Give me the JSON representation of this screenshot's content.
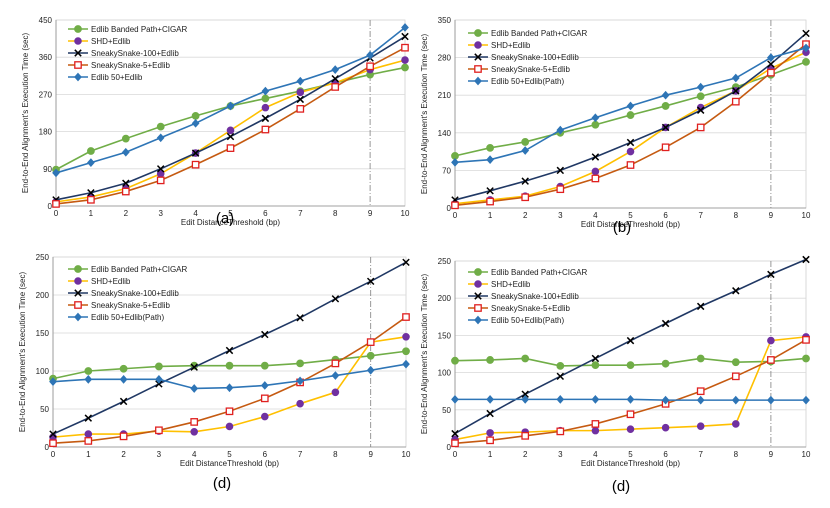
{
  "chart_data": [
    {
      "type": "line",
      "caption": "(a)",
      "xlabel": "Edit DistanceThreshold (bp)",
      "ylabel": "End-to-End Alignment's Execution Time (sec)",
      "x": [
        0,
        1,
        2,
        3,
        4,
        5,
        6,
        7,
        8,
        9,
        10
      ],
      "xlim": [
        0,
        10
      ],
      "ylim": [
        0,
        450
      ],
      "yticks": [
        0,
        90,
        180,
        270,
        360,
        450
      ],
      "grid": true,
      "legend": "top-left",
      "vline": 9,
      "series": [
        {
          "name": "Edlib Banded Path+CIGAR",
          "color": "#70ad47",
          "marker": "circle",
          "values": [
            88,
            133,
            163,
            192,
            218,
            242,
            260,
            278,
            298,
            318,
            335
          ]
        },
        {
          "name": "SHD+Edlib",
          "color": "#ffc000",
          "marker": "purple-circle",
          "values": [
            10,
            22,
            42,
            78,
            128,
            183,
            238,
            275,
            298,
            330,
            353
          ]
        },
        {
          "name": "SneakySnake-100+Edlib",
          "color": "#203864",
          "marker": "x",
          "values": [
            15,
            32,
            55,
            90,
            128,
            168,
            212,
            258,
            308,
            358,
            410
          ]
        },
        {
          "name": "SneakySnake-5+Edlib",
          "color": "#c55a11",
          "marker": "square",
          "values": [
            5,
            15,
            35,
            62,
            100,
            140,
            185,
            235,
            288,
            338,
            383
          ]
        },
        {
          "name": "Edlib 50+Edlib",
          "color": "#2e75b6",
          "marker": "diamond",
          "values": [
            80,
            105,
            130,
            165,
            200,
            242,
            278,
            302,
            330,
            365,
            432
          ]
        }
      ]
    },
    {
      "type": "line",
      "caption": "(b)",
      "xlabel": "Edit DistanceThreshold (bp)",
      "ylabel": "End-to-End Alignment's Execution Time (sec)",
      "x": [
        0,
        1,
        2,
        3,
        4,
        5,
        6,
        7,
        8,
        9,
        10
      ],
      "xlim": [
        0,
        10
      ],
      "ylim": [
        0,
        350
      ],
      "yticks": [
        0,
        70,
        140,
        210,
        280,
        350
      ],
      "grid": true,
      "legend": "top-left",
      "vline": 9,
      "series": [
        {
          "name": "Edlib Banded Path+CIGAR",
          "color": "#70ad47",
          "marker": "circle",
          "values": [
            97,
            112,
            123,
            140,
            155,
            173,
            190,
            208,
            225,
            248,
            272
          ]
        },
        {
          "name": "SHD+Edlib",
          "color": "#ffc000",
          "marker": "purple-circle",
          "values": [
            8,
            15,
            22,
            40,
            68,
            105,
            150,
            187,
            218,
            260,
            290
          ]
        },
        {
          "name": "SneakySnake-100+Edlib",
          "color": "#203864",
          "marker": "x",
          "values": [
            15,
            32,
            50,
            70,
            95,
            122,
            150,
            182,
            218,
            268,
            325
          ]
        },
        {
          "name": "SneakySnake-5+Edlib",
          "color": "#c55a11",
          "marker": "square",
          "values": [
            5,
            12,
            20,
            35,
            55,
            80,
            113,
            150,
            198,
            252,
            305
          ]
        },
        {
          "name": "Edlib 50+Edlib(Path)",
          "color": "#2e75b6",
          "marker": "diamond",
          "values": [
            85,
            90,
            107,
            145,
            168,
            190,
            210,
            225,
            242,
            280,
            298
          ]
        }
      ]
    },
    {
      "type": "line",
      "caption": "(d)",
      "xlabel": "Edit DistanceThreshold (bp)",
      "ylabel": "End-to-End Alignment's Execution Time (sec)",
      "x": [
        0,
        1,
        2,
        3,
        4,
        5,
        6,
        7,
        8,
        9,
        10
      ],
      "xlim": [
        0,
        10
      ],
      "ylim": [
        0,
        250
      ],
      "yticks": [
        0,
        50,
        100,
        150,
        200,
        250
      ],
      "grid": true,
      "legend": "top-left",
      "vline": 9,
      "series": [
        {
          "name": "Edlib Banded Path+CIGAR",
          "color": "#70ad47",
          "marker": "circle",
          "values": [
            90,
            100,
            103,
            106,
            107,
            107,
            107,
            110,
            115,
            120,
            126
          ]
        },
        {
          "name": "SHD+Edlib",
          "color": "#ffc000",
          "marker": "purple-circle",
          "values": [
            13,
            17,
            17,
            21,
            20,
            27,
            40,
            57,
            72,
            138,
            145
          ]
        },
        {
          "name": "SneakySnake-100+Edlib",
          "color": "#203864",
          "marker": "x",
          "values": [
            17,
            38,
            60,
            83,
            105,
            127,
            148,
            170,
            195,
            218,
            243
          ]
        },
        {
          "name": "SneakySnake-5+Edlib",
          "color": "#c55a11",
          "marker": "square",
          "values": [
            5,
            8,
            14,
            22,
            33,
            47,
            64,
            85,
            110,
            138,
            171
          ]
        },
        {
          "name": "Edlib 50+Edlib(Path)",
          "color": "#2e75b6",
          "marker": "diamond",
          "values": [
            86,
            89,
            89,
            89,
            77,
            78,
            81,
            87,
            94,
            101,
            109
          ]
        }
      ]
    },
    {
      "type": "line",
      "caption": "(d)",
      "xlabel": "Edit DistanceThreshold (bp)",
      "ylabel": "End-to-End Alignment's Execution Time (sec)",
      "x": [
        0,
        1,
        2,
        3,
        4,
        5,
        6,
        7,
        8,
        9,
        10
      ],
      "xlim": [
        0,
        10
      ],
      "ylim": [
        0,
        250
      ],
      "yticks": [
        0,
        50,
        100,
        150,
        200,
        250
      ],
      "grid": true,
      "legend": "top-left",
      "vline": 9,
      "series": [
        {
          "name": "Edlib Banded Path+CIGAR",
          "color": "#70ad47",
          "marker": "circle",
          "values": [
            116,
            117,
            119,
            109,
            110,
            110,
            112,
            119,
            114,
            115,
            119
          ]
        },
        {
          "name": "SHD+Edlib",
          "color": "#ffc000",
          "marker": "purple-circle",
          "values": [
            10,
            19,
            20,
            22,
            22,
            24,
            26,
            28,
            31,
            143,
            148
          ]
        },
        {
          "name": "SneakySnake-100+Edlib",
          "color": "#203864",
          "marker": "x",
          "values": [
            18,
            45,
            71,
            95,
            119,
            143,
            166,
            189,
            210,
            232,
            252
          ]
        },
        {
          "name": "SneakySnake-5+Edlib",
          "color": "#c55a11",
          "marker": "square",
          "values": [
            5,
            9,
            15,
            21,
            31,
            44,
            58,
            75,
            95,
            117,
            144
          ]
        },
        {
          "name": "Edlib 50+Edlib(Path)",
          "color": "#2e75b6",
          "marker": "diamond",
          "values": [
            64,
            64,
            64,
            64,
            64,
            64,
            63,
            63,
            63,
            63,
            63
          ]
        }
      ]
    }
  ]
}
